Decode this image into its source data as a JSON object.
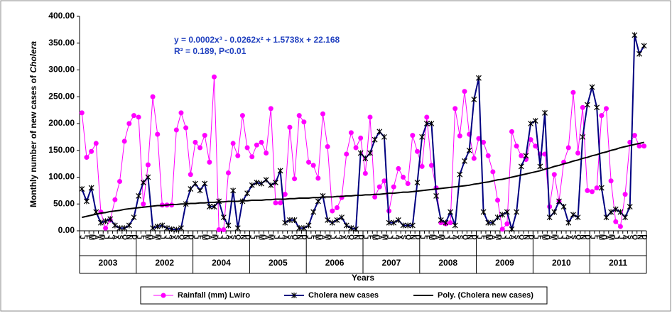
{
  "chart_data": {
    "type": "line",
    "ylabel": "Monthly number of new cases of ",
    "ylabel_italic": "Cholera",
    "xlabel": "Years",
    "equation": "y = 0.0002x³ - 0.0262x² + 1.5738x + 22.168",
    "r_squared": "R² = 0.189,  P<0.01",
    "ylim": [
      0,
      400
    ],
    "yticks": [
      {
        "value": 0,
        "label": "0.00"
      },
      {
        "value": 50,
        "label": "50.00"
      },
      {
        "value": 100,
        "label": "100.00"
      },
      {
        "value": 150,
        "label": "150.00"
      },
      {
        "value": 200,
        "label": "200.00"
      },
      {
        "value": 250,
        "label": "250.00"
      },
      {
        "value": 300,
        "label": "300.00"
      },
      {
        "value": 350,
        "label": "350.00"
      },
      {
        "value": 400,
        "label": "400.00"
      }
    ],
    "categories": [
      "J",
      "F",
      "M",
      "A",
      "M",
      "J",
      "J",
      "A",
      "S",
      "O",
      "N",
      "D",
      "J",
      "F",
      "M",
      "A",
      "M",
      "J",
      "J",
      "A",
      "S",
      "O",
      "N",
      "D",
      "J",
      "F",
      "M",
      "A",
      "M",
      "J",
      "J",
      "A",
      "S",
      "O",
      "N",
      "D",
      "J",
      "F",
      "M",
      "A",
      "M",
      "J",
      "J",
      "A",
      "S",
      "O",
      "N",
      "D",
      "J",
      "F",
      "M",
      "A",
      "M",
      "J",
      "J",
      "A",
      "S",
      "O",
      "N",
      "D",
      "J",
      "F",
      "M",
      "A",
      "M",
      "J",
      "J",
      "A",
      "S",
      "O",
      "N",
      "D",
      "J",
      "F",
      "M",
      "A",
      "M",
      "J",
      "J",
      "A",
      "S",
      "O",
      "N",
      "D",
      "J",
      "F",
      "M",
      "A",
      "M",
      "J",
      "J",
      "A",
      "S",
      "O",
      "N",
      "D",
      "J",
      "F",
      "M",
      "A",
      "M",
      "J",
      "J",
      "A",
      "S",
      "O",
      "N",
      "D",
      "J",
      "F",
      "M",
      "A",
      "M",
      "J",
      "J",
      "A",
      "S",
      "O",
      "N",
      "D"
    ],
    "year_labels": [
      "2003",
      "2002",
      "2004",
      "2005",
      "2006",
      "2007",
      "2008",
      "2009",
      "2010",
      "2011"
    ],
    "legend": "bottom",
    "series": [
      {
        "name": "Rainfall (mm) Lwiro",
        "color": "#ff00ff",
        "marker": "circle",
        "values": [
          220,
          137,
          148,
          163,
          35,
          5,
          20,
          58,
          92,
          167,
          200,
          215,
          212,
          50,
          123,
          250,
          180,
          48,
          48,
          48,
          188,
          220,
          192,
          105,
          165,
          155,
          178,
          128,
          287,
          2,
          2,
          108,
          163,
          140,
          215,
          155,
          138,
          160,
          165,
          145,
          228,
          52,
          52,
          68,
          193,
          97,
          215,
          203,
          128,
          122,
          98,
          218,
          157,
          37,
          43,
          62,
          143,
          183,
          155,
          173,
          107,
          212,
          63,
          82,
          93,
          37,
          82,
          116,
          100,
          88,
          178,
          148,
          120,
          212,
          122,
          80,
          15,
          13,
          15,
          228,
          177,
          260,
          180,
          135,
          172,
          165,
          140,
          110,
          57,
          3,
          13,
          185,
          158,
          140,
          133,
          170,
          158,
          143,
          143,
          45,
          105,
          55,
          128,
          155,
          258,
          145,
          230,
          75,
          73,
          80,
          215,
          228,
          93,
          17,
          8,
          68,
          165,
          178,
          158,
          158
        ]
      },
      {
        "name": "Cholera new cases",
        "color": "#000080",
        "marker": "asterisk",
        "values": [
          78,
          55,
          80,
          35,
          15,
          18,
          22,
          10,
          5,
          5,
          10,
          25,
          65,
          90,
          100,
          5,
          8,
          10,
          5,
          3,
          2,
          5,
          50,
          78,
          88,
          75,
          88,
          45,
          45,
          55,
          25,
          10,
          75,
          5,
          55,
          70,
          85,
          90,
          88,
          95,
          85,
          90,
          112,
          15,
          20,
          20,
          5,
          5,
          10,
          35,
          55,
          65,
          20,
          15,
          20,
          25,
          10,
          5,
          3,
          145,
          135,
          145,
          170,
          185,
          175,
          15,
          15,
          20,
          10,
          10,
          10,
          90,
          175,
          200,
          200,
          65,
          20,
          15,
          35,
          10,
          105,
          130,
          150,
          245,
          285,
          35,
          15,
          15,
          25,
          30,
          35,
          3,
          35,
          120,
          140,
          200,
          205,
          120,
          220,
          25,
          35,
          55,
          45,
          15,
          30,
          25,
          175,
          235,
          268,
          230,
          80,
          25,
          35,
          40,
          35,
          25,
          45,
          365,
          330,
          345
        ]
      },
      {
        "name": "Poly. (Cholera new cases)",
        "color": "#000000",
        "marker": "none",
        "values": [
          25,
          27,
          29,
          31,
          33,
          34,
          36,
          37,
          38,
          40,
          41,
          42,
          43,
          44,
          45,
          46,
          47,
          47,
          48,
          49,
          49,
          50,
          50,
          51,
          51,
          52,
          52,
          53,
          53,
          54,
          54,
          55,
          55,
          55,
          56,
          56,
          57,
          57,
          57,
          58,
          58,
          59,
          59,
          59,
          60,
          60,
          61,
          61,
          61,
          62,
          62,
          63,
          63,
          63,
          64,
          64,
          65,
          65,
          66,
          66,
          67,
          67,
          68,
          68,
          69,
          70,
          70,
          71,
          72,
          72,
          73,
          74,
          75,
          76,
          77,
          78,
          79,
          80,
          81,
          82,
          83,
          84,
          85,
          87,
          88,
          90,
          91,
          93,
          95,
          96,
          98,
          100,
          102,
          104,
          106,
          108,
          110,
          112,
          115,
          117,
          120,
          122,
          125,
          127,
          130,
          132,
          135,
          137,
          140,
          142,
          145,
          147,
          150,
          152,
          155,
          157,
          159,
          161,
          163,
          165
        ]
      }
    ]
  }
}
